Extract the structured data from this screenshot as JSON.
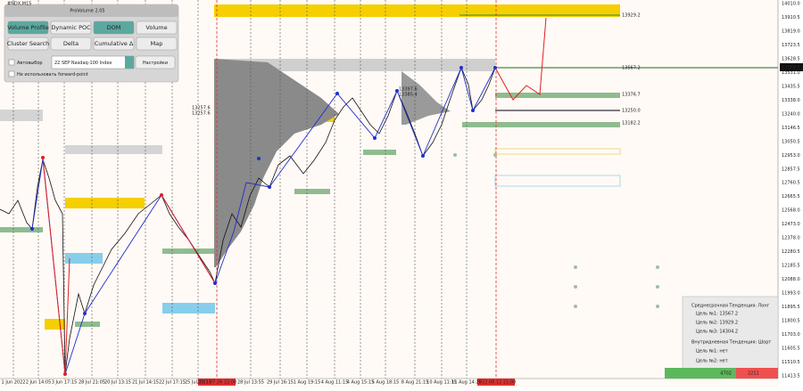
{
  "header": {
    "symbol": "#NDX,M15"
  },
  "panel": {
    "title": "ProVolume 2.05",
    "buttons": [
      "Volume Profile",
      "Dynamic POC",
      "DOM",
      "Volume",
      "Cluster Search",
      "Delta",
      "Cumulative Δ",
      "Map"
    ],
    "auto_label": "Автовыбор",
    "instrument": "22 SEP Nasdaq-100 Index",
    "settings": "Настройки",
    "forward_point": "Не использовать forward-point"
  },
  "price_axis": {
    "labels": [
      "14010.0",
      "13910.5",
      "13819.0",
      "13723.5",
      "13628.5",
      "13531.0",
      "13435.5",
      "13338.0",
      "13240.0",
      "13146.5",
      "13050.5",
      "12953.0",
      "12857.5",
      "12760.5",
      "12665.5",
      "12568.0",
      "12473.0",
      "12378.0",
      "12280.5",
      "12185.5",
      "12088.0",
      "11993.0",
      "11895.5",
      "11800.5",
      "11703.0",
      "11605.5",
      "11510.5",
      "11413.5"
    ],
    "current": "13588.5"
  },
  "levels": [
    "13929.2",
    "13567.2",
    "13376.7",
    "13250.0",
    "13182.2"
  ],
  "marker_labels": [
    "13257.6",
    "13257.6",
    "13397.6",
    "13385.4"
  ],
  "time_axis": {
    "labels": [
      "1 Jun 2022",
      "2 Jun 14:05",
      "3 Jun 17:15",
      "28 Jul 21:05",
      "20 Jul 13:15",
      "21 Jul 14:15",
      "22 Jul 17:15",
      "25 Jul 20:15",
      "28 Jul 13:55",
      "29 Jul 16:15",
      "1 Aug 19:15",
      "4 Aug 11:15",
      "4 Aug 15:15",
      "5 Aug 18:15",
      "8 Aug 21:15",
      "10 Aug 11:15",
      "11 Aug 14:15"
    ],
    "highlighted": [
      "2022.07.26 22:00",
      "2022.08.12 21:00"
    ]
  },
  "info": {
    "lines": [
      "Среднесрочная Тенденция: Лонг",
      "Цель №1: 13567.2",
      "Цель №2: 13929.2",
      "Цель №3: 14304.2",
      "Внутридневная Тенденция: Шорт",
      "Цель №1: нет",
      "Цель №2: нет"
    ]
  },
  "footer": {
    "buy": "4702",
    "sell": "2211"
  }
}
